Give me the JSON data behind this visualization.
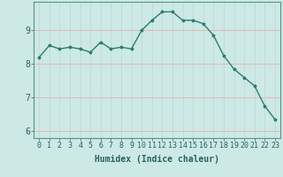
{
  "x": [
    0,
    1,
    2,
    3,
    4,
    5,
    6,
    7,
    8,
    9,
    10,
    11,
    12,
    13,
    14,
    15,
    16,
    17,
    18,
    19,
    20,
    21,
    22,
    23
  ],
  "y": [
    8.2,
    8.55,
    8.45,
    8.5,
    8.45,
    8.35,
    8.65,
    8.45,
    8.5,
    8.45,
    9.0,
    9.3,
    9.55,
    9.55,
    9.3,
    9.3,
    9.2,
    8.85,
    8.25,
    7.85,
    7.6,
    7.35,
    6.75,
    6.35
  ],
  "line_color": "#2d7d6e",
  "marker": "*",
  "marker_size": 2.5,
  "bg_color": "#cce9e5",
  "grid_color_v": "#c4d8d5",
  "grid_color_h": "#e8b0b0",
  "axis_bg": "#cce9e5",
  "xlabel": "Humidex (Indice chaleur)",
  "xlabel_fontsize": 7,
  "ytick_labels": [
    "6",
    "7",
    "8",
    "9"
  ],
  "yticks": [
    6,
    7,
    8,
    9
  ],
  "xticks": [
    0,
    1,
    2,
    3,
    4,
    5,
    6,
    7,
    8,
    9,
    10,
    11,
    12,
    13,
    14,
    15,
    16,
    17,
    18,
    19,
    20,
    21,
    22,
    23
  ],
  "ylim": [
    5.8,
    9.85
  ],
  "xlim": [
    -0.5,
    23.5
  ],
  "linewidth": 1.0,
  "tick_fontsize": 6
}
